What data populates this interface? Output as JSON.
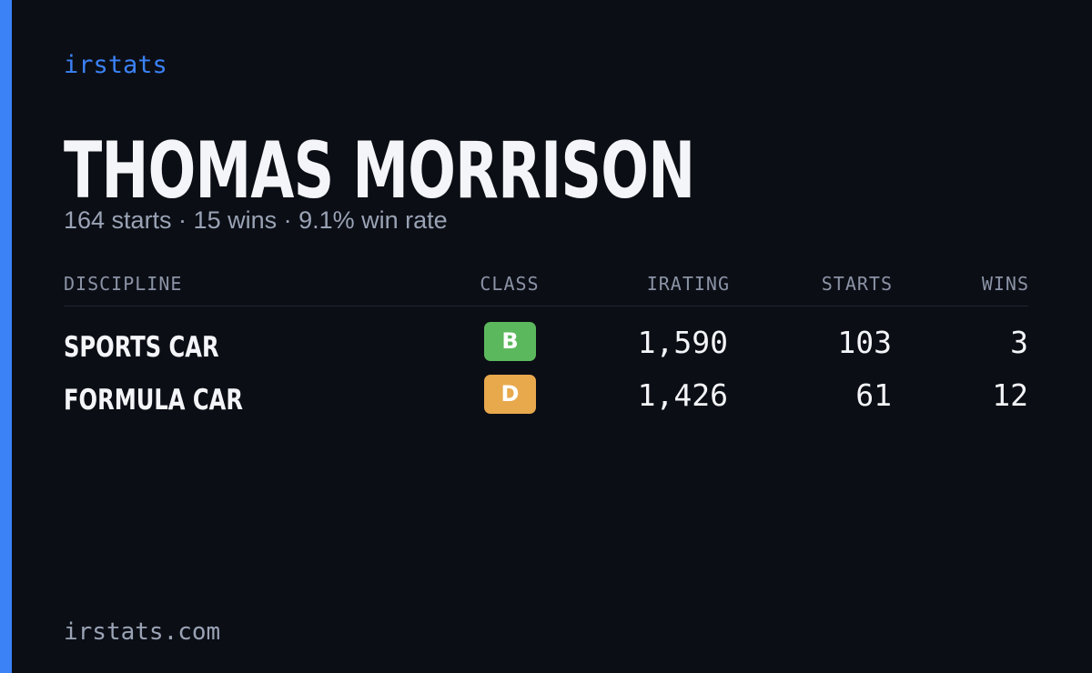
{
  "brand": "irstats",
  "profile": {
    "name": "THOMAS MORRISON",
    "summary": "164 starts · 15 wins · 9.1% win rate"
  },
  "table": {
    "headers": [
      "DISCIPLINE",
      "CLASS",
      "IRATING",
      "STARTS",
      "WINS"
    ],
    "rows": [
      [
        "SPORTS CAR",
        "B",
        "1,590",
        "103",
        "3"
      ],
      [
        "FORMULA CAR",
        "D",
        "1,426",
        "61",
        "12"
      ]
    ]
  },
  "footer": "irstats.com"
}
